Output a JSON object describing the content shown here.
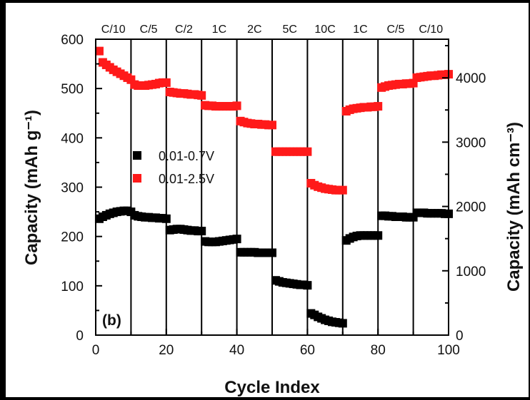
{
  "chart_data": {
    "type": "scatter",
    "panel_label": "(b)",
    "xlabel": "Cycle Index",
    "ylabel_left": "Capacity (mAh g⁻¹)",
    "ylabel_right": "Capacity (mAh cm⁻³)",
    "xlim": [
      0,
      100
    ],
    "ylim_left": [
      0,
      600
    ],
    "ylim_right": [
      0,
      4600
    ],
    "x_ticks": [
      0,
      20,
      40,
      60,
      80,
      100
    ],
    "y_ticks_left": [
      0,
      100,
      200,
      300,
      400,
      500,
      600
    ],
    "y_ticks_right": [
      0,
      1000,
      2000,
      3000,
      4000
    ],
    "rate_labels": [
      "C/10",
      "C/5",
      "C/2",
      "1C",
      "2C",
      "5C",
      "10C",
      "1C",
      "C/5",
      "C/10"
    ],
    "segment_boundaries": [
      10,
      20,
      30,
      40,
      50,
      60,
      70,
      80,
      90
    ],
    "legend_position": "center-left",
    "series": [
      {
        "name": "0.01-0.7V",
        "color": "#000000",
        "marker": "square",
        "x": [
          1,
          2,
          3,
          4,
          5,
          6,
          7,
          8,
          9,
          10,
          11,
          12,
          13,
          14,
          15,
          16,
          17,
          18,
          19,
          20,
          21,
          22,
          23,
          24,
          25,
          26,
          27,
          28,
          29,
          30,
          31,
          32,
          33,
          34,
          35,
          36,
          37,
          38,
          39,
          40,
          41,
          42,
          43,
          44,
          45,
          46,
          47,
          48,
          49,
          50,
          51,
          52,
          53,
          54,
          55,
          56,
          57,
          58,
          59,
          60,
          61,
          62,
          63,
          64,
          65,
          66,
          67,
          68,
          69,
          70,
          71,
          72,
          73,
          74,
          75,
          76,
          77,
          78,
          79,
          80,
          81,
          82,
          83,
          84,
          85,
          86,
          87,
          88,
          89,
          90,
          91,
          92,
          93,
          94,
          95,
          96,
          97,
          98,
          99,
          100
        ],
        "y": [
          236,
          240,
          243,
          246,
          248,
          250,
          251,
          252,
          252,
          250,
          243,
          241,
          240,
          239,
          239,
          238,
          238,
          237,
          237,
          236,
          213,
          214,
          215,
          215,
          214,
          213,
          212,
          212,
          211,
          211,
          190,
          189,
          189,
          189,
          190,
          191,
          192,
          193,
          194,
          195,
          168,
          168,
          168,
          168,
          168,
          167,
          167,
          167,
          167,
          167,
          111,
          109,
          107,
          106,
          105,
          104,
          103,
          102,
          102,
          101,
          44,
          41,
          37,
          34,
          31,
          29,
          27,
          26,
          25,
          24,
          192,
          196,
          199,
          201,
          202,
          202,
          202,
          202,
          202,
          202,
          242,
          242,
          241,
          241,
          240,
          240,
          240,
          239,
          239,
          239,
          248,
          248,
          248,
          247,
          247,
          247,
          247,
          247,
          246,
          246
        ]
      },
      {
        "name": "0.01-2.5V",
        "color": "#ff1a1a",
        "marker": "square",
        "x": [
          1,
          2,
          3,
          4,
          5,
          6,
          7,
          8,
          9,
          10,
          11,
          12,
          13,
          14,
          15,
          16,
          17,
          18,
          19,
          20,
          21,
          22,
          23,
          24,
          25,
          26,
          27,
          28,
          29,
          30,
          31,
          32,
          33,
          34,
          35,
          36,
          37,
          38,
          39,
          40,
          41,
          42,
          43,
          44,
          45,
          46,
          47,
          48,
          49,
          50,
          51,
          52,
          53,
          54,
          55,
          56,
          57,
          58,
          59,
          60,
          61,
          62,
          63,
          64,
          65,
          66,
          67,
          68,
          69,
          70,
          71,
          72,
          73,
          74,
          75,
          76,
          77,
          78,
          79,
          80,
          81,
          82,
          83,
          84,
          85,
          86,
          87,
          88,
          89,
          90,
          91,
          92,
          93,
          94,
          95,
          96,
          97,
          98,
          99,
          100
        ],
        "y": [
          576,
          553,
          548,
          543,
          538,
          534,
          530,
          526,
          522,
          518,
          508,
          506,
          506,
          506,
          507,
          508,
          509,
          511,
          512,
          512,
          493,
          492,
          491,
          490,
          490,
          489,
          488,
          488,
          487,
          486,
          466,
          465,
          465,
          464,
          464,
          464,
          464,
          464,
          464,
          465,
          434,
          432,
          430,
          429,
          428,
          428,
          427,
          427,
          426,
          426,
          372,
          372,
          372,
          372,
          372,
          372,
          372,
          372,
          372,
          372,
          308,
          304,
          301,
          299,
          297,
          296,
          295,
          294,
          294,
          294,
          454,
          457,
          459,
          460,
          461,
          462,
          462,
          463,
          463,
          464,
          502,
          504,
          506,
          507,
          508,
          509,
          509,
          510,
          510,
          511,
          522,
          523,
          524,
          525,
          526,
          526,
          527,
          528,
          528,
          529
        ]
      }
    ]
  }
}
